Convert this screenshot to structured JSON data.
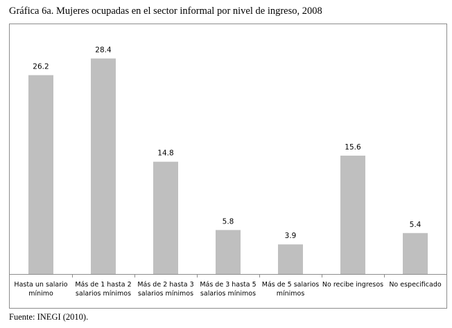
{
  "title": "Gráfica 6a. Mujeres ocupadas en el sector informal por nivel de ingreso, 2008",
  "source": "Fuente: INEGI (2010).",
  "chart_data": {
    "type": "bar",
    "categories": [
      [
        "Hasta un salario",
        "mínimo"
      ],
      [
        "Más de 1 hasta 2",
        "salarios mínimos"
      ],
      [
        "Más de 2 hasta 3",
        "salarios mínimos"
      ],
      [
        "Más de 3 hasta 5",
        "salarios mínimos"
      ],
      [
        "Más de 5 salarios",
        "mínimos"
      ],
      [
        "No recibe ingresos"
      ],
      [
        "No especificado"
      ]
    ],
    "values": [
      26.2,
      28.4,
      14.8,
      5.8,
      3.9,
      15.6,
      5.4
    ],
    "data_labels": [
      "26.2",
      "28.4",
      "14.8",
      "5.8",
      "3.9",
      "15.6",
      "5.4"
    ],
    "ylim": [
      0,
      32
    ],
    "bar_color": "#bfbfbf",
    "axis_color": "#8c8c8c",
    "grid": false,
    "legend": "none",
    "xlabel": "",
    "ylabel": ""
  }
}
